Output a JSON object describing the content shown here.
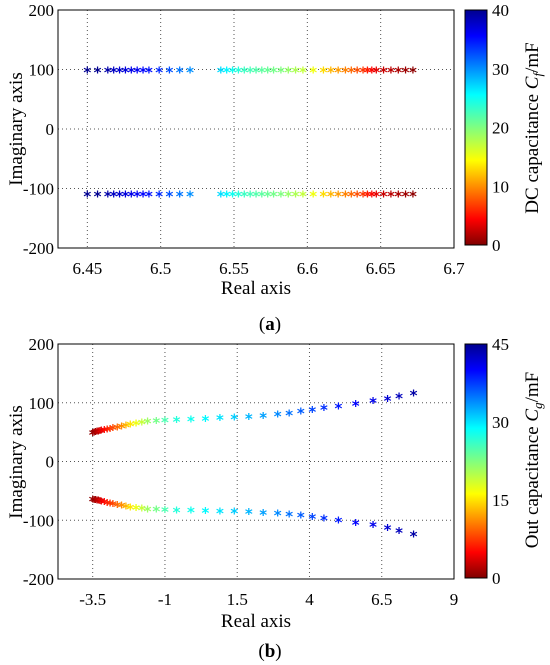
{
  "chart_data": [
    {
      "type": "scatter",
      "subfigure": {
        "open": "(",
        "letter": "a",
        "close": ")"
      },
      "xlabel": "Real axis",
      "ylabel": "Imaginary axis",
      "xlim": [
        6.43,
        6.7
      ],
      "ylim": [
        -200,
        200
      ],
      "xticks": [
        "6.45",
        "6.5",
        "6.55",
        "6.6",
        "6.65",
        "6.7"
      ],
      "xtick_values": [
        6.45,
        6.5,
        6.55,
        6.6,
        6.65,
        6.7
      ],
      "yticks": [
        "200",
        "100",
        "0",
        "-100",
        "-200"
      ],
      "ytick_values": [
        200,
        100,
        0,
        -100,
        -200
      ],
      "grid": true,
      "marker": "*",
      "colorbar": {
        "label_prefix": "DC capacitance ",
        "label_var": "C",
        "label_sub": "f",
        "label_suffix": "/mF",
        "range": [
          0,
          40
        ],
        "ticks": [
          "40",
          "30",
          "20",
          "10",
          "0"
        ],
        "tick_values": [
          40,
          30,
          20,
          10,
          0
        ],
        "colormap": "jet"
      },
      "series": [
        {
          "x": [
            6.45,
            6.457,
            6.464,
            6.468,
            6.472,
            6.476,
            6.48,
            6.484,
            6.488,
            6.492,
            6.499,
            6.506,
            6.513,
            6.52,
            6.541,
            6.545,
            6.549,
            6.553,
            6.557,
            6.561,
            6.565,
            6.569,
            6.573,
            6.577,
            6.582,
            6.587,
            6.592,
            6.597,
            6.604,
            6.611,
            6.616,
            6.621,
            6.626,
            6.63,
            6.634,
            6.638,
            6.641,
            6.644,
            6.647,
            6.652,
            6.657,
            6.662,
            6.667,
            6.672
          ],
          "y": [
            97,
            97,
            97,
            97,
            97,
            97,
            97,
            97,
            97,
            97,
            97,
            97,
            97,
            97,
            97,
            97,
            97,
            97,
            97,
            97,
            97,
            97,
            97,
            97,
            97,
            97,
            97,
            97,
            97,
            97,
            97,
            97,
            97,
            97,
            97,
            97,
            97,
            97,
            97,
            97,
            97,
            97,
            97,
            97
          ],
          "c": [
            40,
            40,
            39,
            38,
            37.5,
            37,
            36.5,
            36,
            35.5,
            35,
            34,
            32.5,
            31,
            30,
            27,
            26,
            25,
            24,
            23,
            22.5,
            22,
            21.5,
            21,
            20.5,
            20,
            19,
            18,
            17,
            15,
            13,
            11.5,
            10.5,
            9.5,
            8.5,
            7.5,
            6.5,
            5.5,
            4.5,
            3.5,
            2.5,
            2,
            1.5,
            1,
            0.5
          ]
        },
        {
          "x": [
            6.45,
            6.457,
            6.464,
            6.468,
            6.472,
            6.476,
            6.48,
            6.484,
            6.488,
            6.492,
            6.499,
            6.506,
            6.513,
            6.52,
            6.541,
            6.545,
            6.549,
            6.553,
            6.557,
            6.561,
            6.565,
            6.569,
            6.573,
            6.577,
            6.582,
            6.587,
            6.592,
            6.597,
            6.604,
            6.611,
            6.616,
            6.621,
            6.626,
            6.63,
            6.634,
            6.638,
            6.641,
            6.644,
            6.647,
            6.652,
            6.657,
            6.662,
            6.667,
            6.672
          ],
          "y": [
            -112,
            -112,
            -112,
            -112,
            -112,
            -112,
            -112,
            -112,
            -112,
            -112,
            -112,
            -112,
            -112,
            -112,
            -112,
            -112,
            -112,
            -112,
            -112,
            -112,
            -112,
            -112,
            -112,
            -112,
            -112,
            -112,
            -112,
            -112,
            -112,
            -112,
            -112,
            -112,
            -112,
            -112,
            -112,
            -112,
            -112,
            -112,
            -112,
            -112,
            -112,
            -112,
            -112,
            -112
          ],
          "c": [
            40,
            40,
            39,
            38,
            37.5,
            37,
            36.5,
            36,
            35.5,
            35,
            34,
            32.5,
            31,
            30,
            27,
            26,
            25,
            24,
            23,
            22.5,
            22,
            21.5,
            21,
            20.5,
            20,
            19,
            18,
            17,
            15,
            13,
            11.5,
            10.5,
            9.5,
            8.5,
            7.5,
            6.5,
            5.5,
            4.5,
            3.5,
            2.5,
            2,
            1.5,
            1,
            0.5
          ]
        }
      ]
    },
    {
      "type": "scatter",
      "subfigure": {
        "open": "(",
        "letter": "b",
        "close": ")"
      },
      "xlabel": "Real axis",
      "ylabel": "Imaginary axis",
      "xlim": [
        -4.7,
        9
      ],
      "ylim": [
        -200,
        200
      ],
      "xticks": [
        "-3.5",
        "-1",
        "1.5",
        "4",
        "6.5",
        "9"
      ],
      "xtick_values": [
        -3.5,
        -1,
        1.5,
        4,
        6.5,
        9
      ],
      "yticks": [
        "200",
        "100",
        "0",
        "-100",
        "-200"
      ],
      "ytick_values": [
        200,
        100,
        0,
        -100,
        -200
      ],
      "grid": true,
      "marker": "*",
      "colorbar": {
        "label_prefix": "Out capacitance ",
        "label_var": "C",
        "label_sub": "g",
        "label_suffix": "/mF",
        "range": [
          0,
          45
        ],
        "ticks": [
          "45",
          "30",
          "15",
          "0"
        ],
        "tick_values": [
          45,
          30,
          15,
          0
        ],
        "colormap": "jet"
      },
      "series": [
        {
          "x": [
            -3.5,
            -3.45,
            -3.4,
            -3.35,
            -3.3,
            -3.25,
            -3.2,
            -3.1,
            -3.0,
            -2.9,
            -2.8,
            -2.65,
            -2.5,
            -2.35,
            -2.2,
            -2.0,
            -1.8,
            -1.6,
            -1.3,
            -1.0,
            -0.6,
            -0.1,
            0.4,
            0.9,
            1.4,
            1.9,
            2.4,
            2.9,
            3.3,
            3.7,
            4.1,
            4.5,
            5.0,
            5.6,
            6.2,
            6.7,
            7.1,
            7.6
          ],
          "y": [
            47,
            48,
            48.5,
            49,
            49.5,
            50,
            51,
            52,
            53,
            54,
            55,
            56.5,
            58,
            59.5,
            61,
            63,
            65,
            66,
            67,
            68,
            69,
            70,
            71,
            72,
            73,
            74,
            76,
            78,
            80,
            83,
            86,
            89,
            92,
            96,
            101,
            105,
            109,
            114
          ],
          "c": [
            0.5,
            1,
            1.5,
            2,
            2.5,
            3,
            4,
            5,
            6,
            7,
            8,
            9.5,
            11,
            13,
            15,
            17,
            19,
            21,
            23,
            25,
            27,
            28,
            29,
            30,
            31,
            32,
            33,
            34,
            35,
            36,
            37,
            38,
            39,
            40,
            41,
            42,
            43,
            44
          ]
        },
        {
          "x": [
            -3.5,
            -3.45,
            -3.4,
            -3.35,
            -3.3,
            -3.25,
            -3.2,
            -3.1,
            -3.0,
            -2.9,
            -2.8,
            -2.65,
            -2.5,
            -2.35,
            -2.2,
            -2.0,
            -1.8,
            -1.6,
            -1.3,
            -1.0,
            -0.6,
            -0.1,
            0.4,
            0.9,
            1.4,
            1.9,
            2.4,
            2.9,
            3.3,
            3.7,
            4.1,
            4.5,
            5.0,
            5.6,
            6.2,
            6.7,
            7.1,
            7.6
          ],
          "y": [
            -66,
            -67,
            -67.5,
            -68,
            -68.5,
            -69,
            -70,
            -71,
            -72,
            -73,
            -74,
            -75.5,
            -77,
            -78.5,
            -80,
            -81,
            -82,
            -83,
            -83.5,
            -84,
            -85,
            -85.5,
            -86,
            -86.5,
            -87,
            -88,
            -89,
            -90,
            -92,
            -94,
            -96,
            -99,
            -102,
            -106,
            -110,
            -115,
            -120,
            -126
          ],
          "c": [
            0.5,
            1,
            1.5,
            2,
            2.5,
            3,
            4,
            5,
            6,
            7,
            8,
            9.5,
            11,
            13,
            15,
            17,
            19,
            21,
            23,
            25,
            27,
            28,
            29,
            30,
            31,
            32,
            33,
            34,
            35,
            36,
            37,
            38,
            39,
            40,
            41,
            42,
            43,
            44
          ]
        }
      ]
    }
  ]
}
